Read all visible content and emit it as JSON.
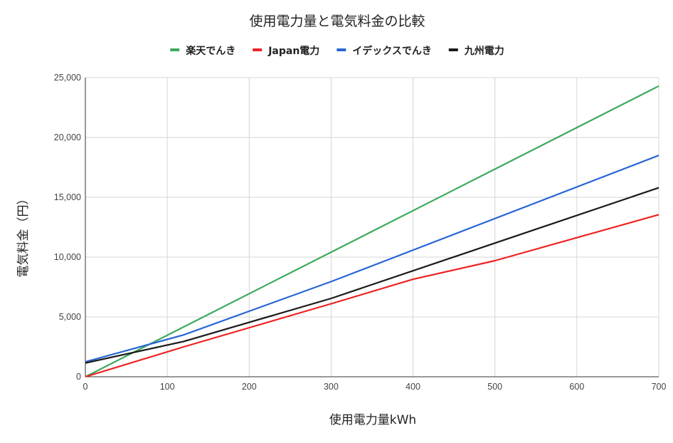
{
  "chart_data": {
    "type": "line",
    "title": "使用電力量と電気料金の比較",
    "xlabel": "使用電力量kWh",
    "ylabel": "電気料金（円）",
    "xlim": [
      0,
      700
    ],
    "ylim": [
      0,
      25000
    ],
    "x_ticks": [
      0,
      100,
      200,
      300,
      400,
      500,
      600,
      700
    ],
    "x_tick_labels": [
      "0",
      "100",
      "200",
      "300",
      "400",
      "500",
      "600",
      "700"
    ],
    "y_ticks": [
      0,
      5000,
      10000,
      15000,
      20000,
      25000
    ],
    "y_tick_labels": [
      "0",
      "5,000",
      "10,000",
      "15,000",
      "20,000",
      "25,000"
    ],
    "grid": true,
    "legend_position": "top",
    "series": [
      {
        "name": "楽天でんき",
        "color": "#3daa5c",
        "x": [
          0,
          700
        ],
        "y": [
          0,
          24300
        ]
      },
      {
        "name": "Japan電力",
        "color": "#ee2222",
        "x": [
          0,
          120,
          300,
          400,
          500,
          700
        ],
        "y": [
          0,
          2500,
          6100,
          8150,
          9700,
          13550
        ]
      },
      {
        "name": "イデックスでんき",
        "color": "#2866d4",
        "x": [
          0,
          120,
          300,
          700
        ],
        "y": [
          1250,
          3500,
          7950,
          18500
        ]
      },
      {
        "name": "九州電力",
        "color": "#1a1a1a",
        "x": [
          0,
          120,
          300,
          700
        ],
        "y": [
          1150,
          2950,
          6550,
          15800
        ]
      }
    ]
  }
}
